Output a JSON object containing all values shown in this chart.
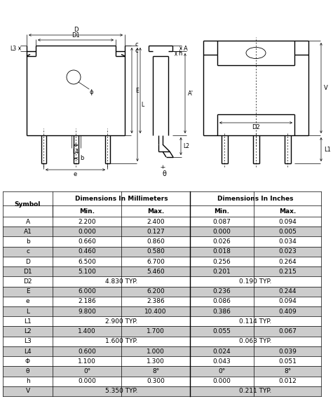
{
  "bg_color": "#ffffff",
  "symbols": [
    "A",
    "A1",
    "b",
    "c",
    "D",
    "D1",
    "D2",
    "E",
    "e",
    "L",
    "L1",
    "L2",
    "L3",
    "L4",
    "Φ",
    "θ",
    "h",
    "V"
  ],
  "mm_min": [
    "2.200",
    "0.000",
    "0.660",
    "0.460",
    "6.500",
    "5.100",
    "",
    "6.000",
    "2.186",
    "9.800",
    "",
    "1.400",
    "",
    "0.600",
    "1.100",
    "0°",
    "0.000",
    ""
  ],
  "mm_max": [
    "2.400",
    "0.127",
    "0.860",
    "0.580",
    "6.700",
    "5.460",
    "",
    "6.200",
    "2.386",
    "10.400",
    "",
    "1.700",
    "",
    "1.000",
    "1.300",
    "8°",
    "0.300",
    ""
  ],
  "mm_typ": [
    null,
    null,
    null,
    null,
    null,
    null,
    "4.830 TYP.",
    null,
    null,
    null,
    "2.900 TYP.",
    null,
    "1.600 TYP.",
    null,
    null,
    null,
    null,
    "5.350 TYP."
  ],
  "in_min": [
    "0.087",
    "0.000",
    "0.026",
    "0.018",
    "0.256",
    "0.201",
    "",
    "0.236",
    "0.086",
    "0.386",
    "",
    "0.055",
    "",
    "0.024",
    "0.043",
    "0°",
    "0.000",
    ""
  ],
  "in_max": [
    "0.094",
    "0.005",
    "0.034",
    "0.023",
    "0.264",
    "0.215",
    "",
    "0.244",
    "0.094",
    "0.409",
    "",
    "0.067",
    "",
    "0.039",
    "0.051",
    "8°",
    "0.012",
    ""
  ],
  "in_typ": [
    null,
    null,
    null,
    null,
    null,
    null,
    "0.190 TYP.",
    null,
    null,
    null,
    "0.114 TYP.",
    null,
    "0.063 TYP.",
    null,
    null,
    null,
    null,
    "0.211 TYP."
  ]
}
